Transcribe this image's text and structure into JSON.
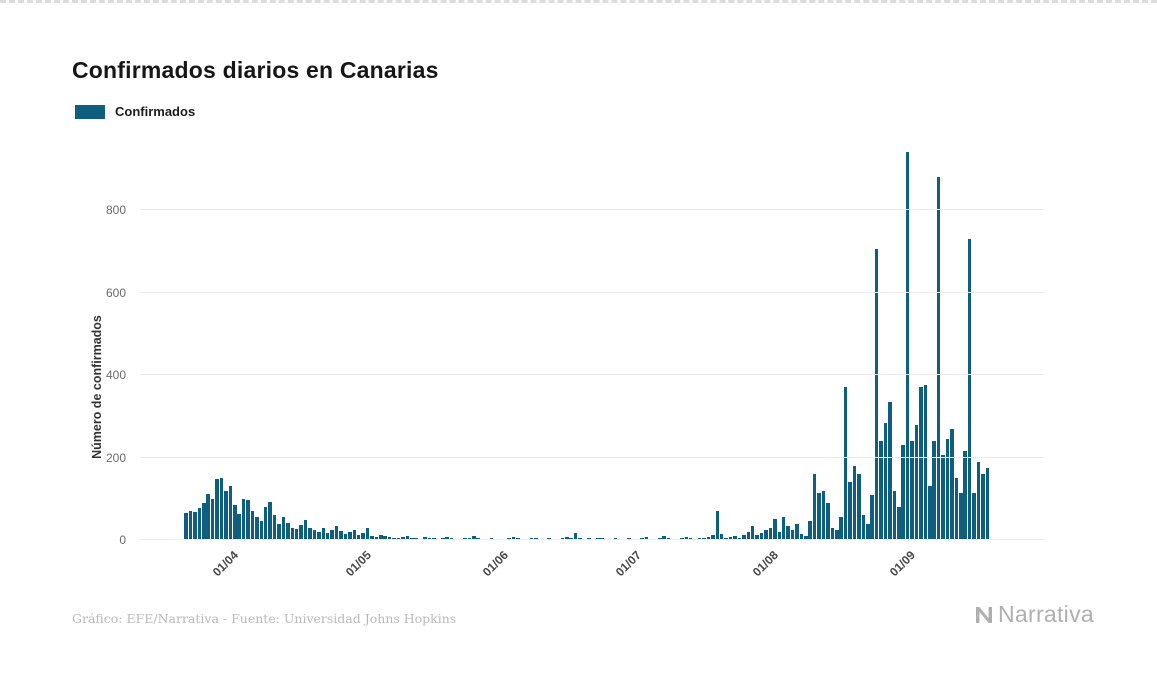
{
  "page": {
    "title": "Confirmados diarios en Canarias",
    "legend": {
      "label": "Confirmados",
      "swatch_color": "#0f5e7e"
    },
    "footer": {
      "credit": "Gráfico: EFE/Narrativa - Fuente: Universidad Johns Hopkins"
    },
    "brand": {
      "name": "Narrativa"
    }
  },
  "chart_data": {
    "type": "bar",
    "title": "Confirmados diarios en Canarias",
    "ylabel": "Número de confirmados",
    "xlabel": "",
    "legend_entries": [
      "Confirmados"
    ],
    "legend_position": "top-left",
    "grid": "horizontal",
    "bar_color": "#0f5e7e",
    "ylim": [
      0,
      975
    ],
    "yticks": [
      0,
      200,
      400,
      600,
      800
    ],
    "xticks": [
      "01/04",
      "01/05",
      "01/06",
      "01/07",
      "01/08",
      "01/09"
    ],
    "x": [
      "12/03",
      "13/03",
      "14/03",
      "15/03",
      "16/03",
      "17/03",
      "18/03",
      "19/03",
      "20/03",
      "21/03",
      "22/03",
      "23/03",
      "24/03",
      "25/03",
      "26/03",
      "27/03",
      "28/03",
      "29/03",
      "30/03",
      "31/03",
      "01/04",
      "02/04",
      "03/04",
      "04/04",
      "05/04",
      "06/04",
      "07/04",
      "08/04",
      "09/04",
      "10/04",
      "11/04",
      "12/04",
      "13/04",
      "14/04",
      "15/04",
      "16/04",
      "17/04",
      "18/04",
      "19/04",
      "20/04",
      "21/04",
      "22/04",
      "23/04",
      "24/04",
      "25/04",
      "26/04",
      "27/04",
      "28/04",
      "29/04",
      "30/04",
      "01/05",
      "02/05",
      "03/05",
      "04/05",
      "05/05",
      "06/05",
      "07/05",
      "08/05",
      "09/05",
      "10/05",
      "11/05",
      "12/05",
      "13/05",
      "14/05",
      "15/05",
      "16/05",
      "17/05",
      "18/05",
      "19/05",
      "20/05",
      "21/05",
      "22/05",
      "23/05",
      "24/05",
      "25/05",
      "26/05",
      "27/05",
      "28/05",
      "29/05",
      "30/05",
      "31/05",
      "01/06",
      "02/06",
      "03/06",
      "04/06",
      "05/06",
      "06/06",
      "07/06",
      "08/06",
      "09/06",
      "10/06",
      "11/06",
      "12/06",
      "13/06",
      "14/06",
      "15/06",
      "16/06",
      "17/06",
      "18/06",
      "19/06",
      "20/06",
      "21/06",
      "22/06",
      "23/06",
      "24/06",
      "25/06",
      "26/06",
      "27/06",
      "28/06",
      "29/06",
      "30/06",
      "01/07",
      "02/07",
      "03/07",
      "04/07",
      "05/07",
      "06/07",
      "07/07",
      "08/07",
      "09/07",
      "10/07",
      "11/07",
      "12/07",
      "13/07",
      "14/07",
      "15/07",
      "16/07",
      "17/07",
      "18/07",
      "19/07",
      "20/07",
      "21/07",
      "22/07",
      "23/07",
      "24/07",
      "25/07",
      "26/07",
      "27/07",
      "28/07",
      "29/07",
      "30/07",
      "31/07",
      "01/08",
      "02/08",
      "03/08",
      "04/08",
      "05/08",
      "06/08",
      "07/08",
      "08/08",
      "09/08",
      "10/08",
      "11/08",
      "12/08",
      "13/08",
      "14/08",
      "15/08",
      "16/08",
      "17/08",
      "18/08",
      "19/08",
      "20/08",
      "21/08",
      "22/08",
      "23/08",
      "24/08",
      "25/08",
      "26/08",
      "27/08",
      "28/08",
      "29/08",
      "30/08",
      "31/08",
      "01/09",
      "02/09",
      "03/09",
      "04/09",
      "05/09",
      "06/09",
      "07/09",
      "08/09",
      "09/09",
      "10/09",
      "11/09",
      "12/09",
      "13/09",
      "14/09",
      "15/09",
      "16/09",
      "17/09",
      "18/09",
      "19/09"
    ],
    "values": [
      0,
      0,
      0,
      0,
      0,
      0,
      0,
      0,
      0,
      0,
      65,
      70,
      67,
      78,
      90,
      112,
      100,
      148,
      150,
      120,
      130,
      85,
      62,
      100,
      96,
      70,
      55,
      45,
      80,
      92,
      60,
      38,
      55,
      42,
      30,
      26,
      36,
      48,
      30,
      25,
      20,
      30,
      18,
      25,
      35,
      22,
      15,
      20,
      25,
      12,
      18,
      30,
      10,
      8,
      12,
      9,
      7,
      5,
      4,
      8,
      10,
      6,
      5,
      3,
      8,
      6,
      4,
      3,
      5,
      7,
      4,
      3,
      2,
      4,
      6,
      9,
      5,
      3,
      2,
      4,
      3,
      2,
      3,
      5,
      8,
      4,
      2,
      3,
      5,
      6,
      3,
      2,
      4,
      3,
      2,
      6,
      8,
      5,
      16,
      4,
      3,
      5,
      2,
      4,
      6,
      3,
      2,
      5,
      3,
      2,
      4,
      3,
      2,
      5,
      8,
      3,
      2,
      4,
      10,
      6,
      3,
      2,
      5,
      8,
      4,
      3,
      6,
      4,
      8,
      12,
      70,
      15,
      5,
      8,
      10,
      6,
      12,
      20,
      35,
      12,
      18,
      25,
      30,
      50,
      20,
      55,
      35,
      25,
      40,
      15,
      10,
      45,
      160,
      115,
      120,
      90,
      30,
      25,
      55,
      370,
      140,
      180,
      160,
      60,
      40,
      110,
      705,
      240,
      285,
      335,
      120,
      80,
      230,
      940,
      240,
      280,
      370,
      375,
      130,
      240,
      880,
      205,
      245,
      270,
      150,
      115,
      215,
      730,
      115,
      190,
      160,
      175
    ]
  }
}
